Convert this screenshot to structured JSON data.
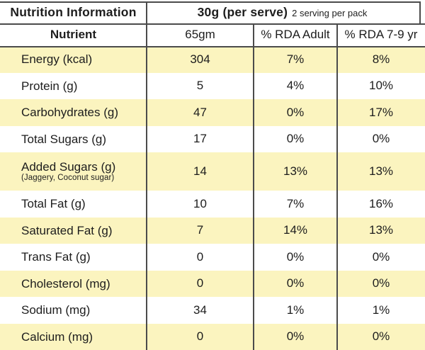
{
  "colors": {
    "row_highlight": "#fbf4bf",
    "line": "#4b4b4b",
    "text": "#1d1d1d",
    "background": "#ffffff"
  },
  "header": {
    "title": "Nutrition Information",
    "serve_size": "30g (per serve)",
    "serve_note": "2 serving per pack"
  },
  "columns": {
    "nutrient": "Nutrient",
    "amount": "65gm",
    "rda_adult": "% RDA Adult",
    "rda_child": "% RDA 7-9 yr"
  },
  "rows": [
    {
      "nutrient": "Energy (kcal)",
      "amount": "304",
      "rda_adult": "7%",
      "rda_child": "8%"
    },
    {
      "nutrient": "Protein (g)",
      "amount": "5",
      "rda_adult": "4%",
      "rda_child": "10%"
    },
    {
      "nutrient": "Carbohydrates (g)",
      "amount": "47",
      "rda_adult": "0%",
      "rda_child": "17%"
    },
    {
      "nutrient": "Total Sugars (g)",
      "amount": "17",
      "rda_adult": "0%",
      "rda_child": "0%"
    },
    {
      "nutrient": "Added Sugars (g)",
      "sub": "(Jaggery, Coconut sugar)",
      "amount": "14",
      "rda_adult": "13%",
      "rda_child": "13%"
    },
    {
      "nutrient": "Total Fat (g)",
      "amount": "10",
      "rda_adult": "7%",
      "rda_child": "16%"
    },
    {
      "nutrient": "Saturated Fat (g)",
      "amount": "7",
      "rda_adult": "14%",
      "rda_child": "13%"
    },
    {
      "nutrient": "Trans Fat (g)",
      "amount": "0",
      "rda_adult": "0%",
      "rda_child": "0%"
    },
    {
      "nutrient": "Cholesterol (mg)",
      "amount": "0",
      "rda_adult": "0%",
      "rda_child": "0%"
    },
    {
      "nutrient": "Sodium (mg)",
      "amount": "34",
      "rda_adult": "1%",
      "rda_child": "1%"
    },
    {
      "nutrient": "Calcium (mg)",
      "amount": "0",
      "rda_adult": "0%",
      "rda_child": "0%"
    }
  ]
}
